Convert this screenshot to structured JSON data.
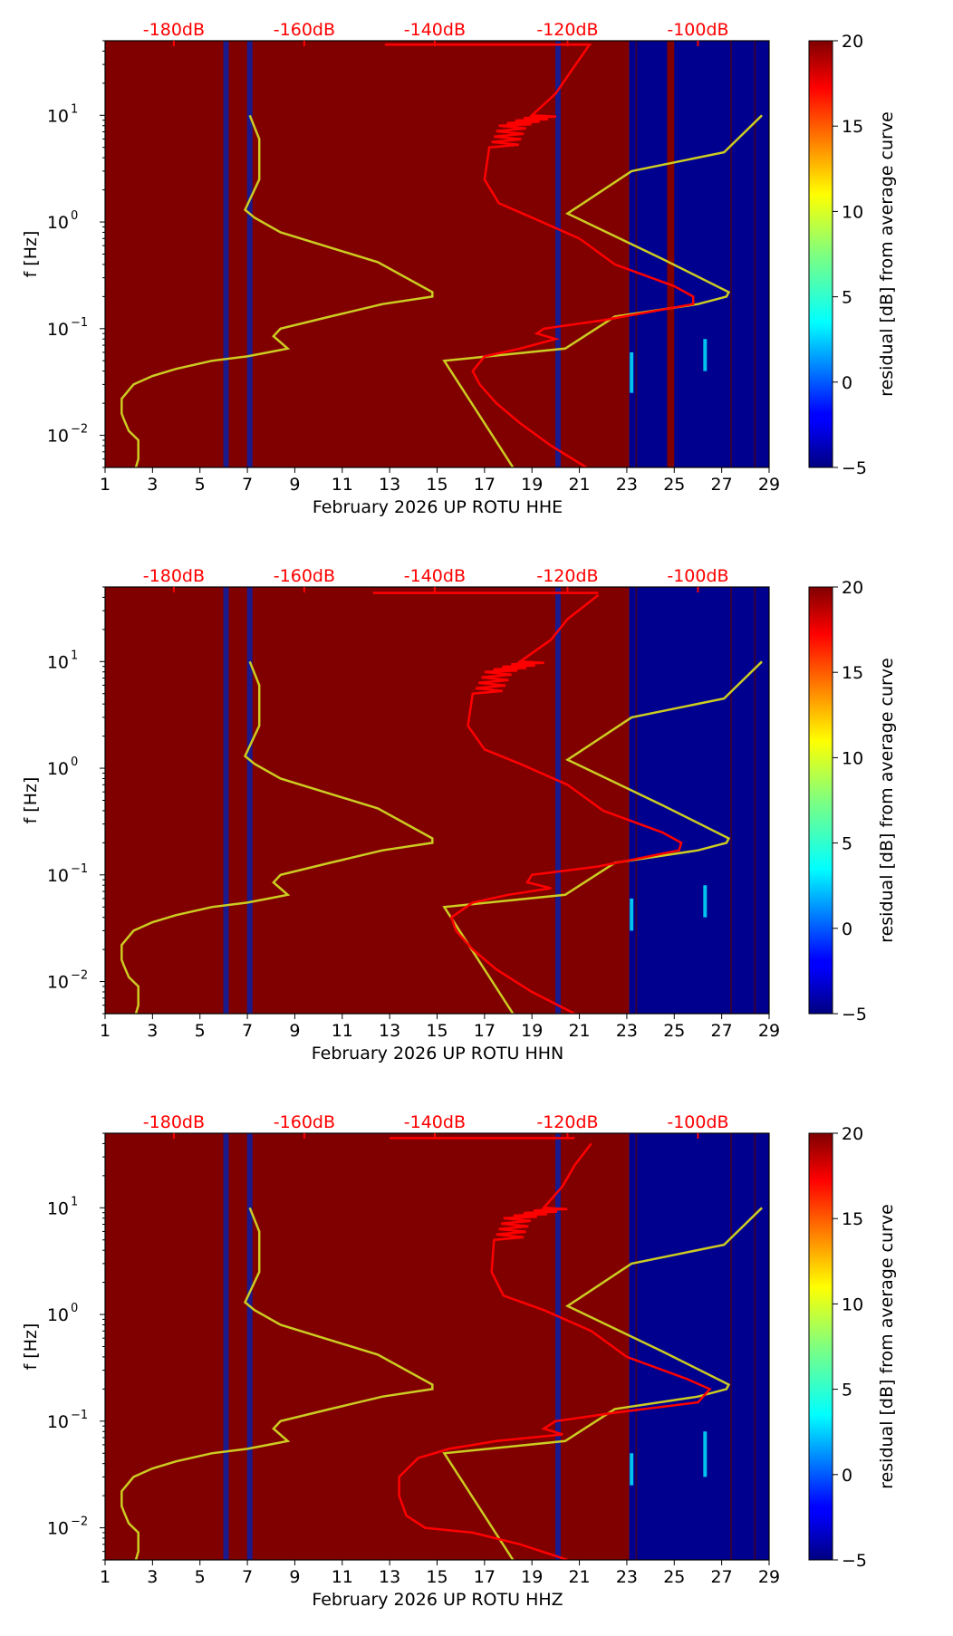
{
  "colors": {
    "background_warm": "#800000",
    "background_cold": "#00008f",
    "stripe": "#1a1a8c",
    "red_curve": "#ff0000",
    "yellow_curve": "#cccc22",
    "top_label": "#ff0000"
  },
  "chart_data": [
    {
      "type": "heatmap",
      "title": "",
      "xlabel": "February 2026 UP ROTU  HHE",
      "ylabel": "f [Hz]",
      "x_ticks": [
        "1",
        "3",
        "5",
        "7",
        "9",
        "11",
        "13",
        "15",
        "17",
        "19",
        "21",
        "23",
        "25",
        "27",
        "29"
      ],
      "xlim": [
        1,
        29
      ],
      "ylim": [
        0.005,
        50
      ],
      "y_ticks": [
        {
          "value": 10,
          "base": "10",
          "exp": "1"
        },
        {
          "value": 1,
          "base": "10",
          "exp": "0"
        },
        {
          "value": 0.1,
          "base": "10",
          "exp": "−1"
        },
        {
          "value": 0.01,
          "base": "10",
          "exp": "−2"
        }
      ],
      "top_axis_labels": [
        "-180dB",
        "-160dB",
        "-140dB",
        "-120dB",
        "-100dB"
      ],
      "top_axis_positions": [
        3.9,
        9.4,
        14.9,
        20.5,
        26.0
      ],
      "colorbar": {
        "label": "residual [dB] from average curve",
        "ticks": [
          "20",
          "15",
          "10",
          "5",
          "0",
          "−5"
        ],
        "range": [
          -5,
          20
        ]
      },
      "background_regions": [
        {
          "from": 1,
          "to": 23.1,
          "value": 20
        },
        {
          "from": 23.1,
          "to": 29,
          "value": -5
        },
        {
          "from": 24.7,
          "to": 25.0,
          "value": 20
        }
      ],
      "gap_stripes": [
        6.1,
        7.1,
        20.1,
        23.4,
        27.4,
        28.4
      ],
      "yellow_curve": [
        [
          2.3,
          0.005
        ],
        [
          2.4,
          0.006
        ],
        [
          2.4,
          0.009
        ],
        [
          2.0,
          0.011
        ],
        [
          1.8,
          0.014
        ],
        [
          1.7,
          0.016
        ],
        [
          1.7,
          0.022
        ],
        [
          2.2,
          0.03
        ],
        [
          3.0,
          0.036
        ],
        [
          4.0,
          0.042
        ],
        [
          5.5,
          0.05
        ],
        [
          7.0,
          0.055
        ],
        [
          7.9,
          0.06
        ],
        [
          8.7,
          0.065
        ],
        [
          8.1,
          0.085
        ],
        [
          8.4,
          0.1
        ],
        [
          10.5,
          0.13
        ],
        [
          12.7,
          0.17
        ],
        [
          14.8,
          0.2
        ],
        [
          14.8,
          0.22
        ],
        [
          12.5,
          0.42
        ],
        [
          8.4,
          0.8
        ],
        [
          7.3,
          1.1
        ],
        [
          6.9,
          1.3
        ],
        [
          7.5,
          2.5
        ],
        [
          7.5,
          6
        ],
        [
          7.1,
          10
        ]
      ],
      "yellow_curve_2": [
        [
          18.2,
          0.005
        ],
        [
          15.3,
          0.05
        ],
        [
          20.4,
          0.065
        ],
        [
          22.5,
          0.13
        ],
        [
          26.0,
          0.17
        ],
        [
          27.2,
          0.2
        ],
        [
          27.3,
          0.22
        ],
        [
          24.5,
          0.45
        ],
        [
          20.5,
          1.2
        ],
        [
          23.2,
          3.0
        ],
        [
          27.1,
          4.5
        ],
        [
          28.7,
          10
        ]
      ],
      "red_curve": [
        [
          21.3,
          0.005
        ],
        [
          19.8,
          0.008
        ],
        [
          18.5,
          0.013
        ],
        [
          17.5,
          0.02
        ],
        [
          16.8,
          0.03
        ],
        [
          16.5,
          0.04
        ],
        [
          17.0,
          0.055
        ],
        [
          18.5,
          0.065
        ],
        [
          20.0,
          0.08
        ],
        [
          19.2,
          0.09
        ],
        [
          19.5,
          0.1
        ],
        [
          22.0,
          0.12
        ],
        [
          25.8,
          0.17
        ],
        [
          25.8,
          0.2
        ],
        [
          25.0,
          0.25
        ],
        [
          22.5,
          0.4
        ],
        [
          21.0,
          0.7
        ],
        [
          19.0,
          1.1
        ],
        [
          17.6,
          1.5
        ],
        [
          17.0,
          2.5
        ],
        [
          17.2,
          5
        ],
        [
          17.6,
          8
        ],
        [
          19.0,
          10
        ],
        [
          20.0,
          16
        ],
        [
          20.6,
          25
        ],
        [
          21.4,
          45
        ]
      ],
      "red_noise_range": [
        3,
        9
      ],
      "red_top": {
        "from": 12.8,
        "to": 21.5,
        "f": 46
      },
      "streaks": [
        [
          23.2,
          0.025,
          0.06
        ],
        [
          26.3,
          0.04,
          0.08
        ]
      ]
    },
    {
      "type": "heatmap",
      "title": "",
      "xlabel": "February 2026 UP ROTU  HHN",
      "ylabel": "f [Hz]",
      "x_ticks": [
        "1",
        "3",
        "5",
        "7",
        "9",
        "11",
        "13",
        "15",
        "17",
        "19",
        "21",
        "23",
        "25",
        "27",
        "29"
      ],
      "xlim": [
        1,
        29
      ],
      "ylim": [
        0.005,
        50
      ],
      "y_ticks": [
        {
          "value": 10,
          "base": "10",
          "exp": "1"
        },
        {
          "value": 1,
          "base": "10",
          "exp": "0"
        },
        {
          "value": 0.1,
          "base": "10",
          "exp": "−1"
        },
        {
          "value": 0.01,
          "base": "10",
          "exp": "−2"
        }
      ],
      "top_axis_labels": [
        "-180dB",
        "-160dB",
        "-140dB",
        "-120dB",
        "-100dB"
      ],
      "top_axis_positions": [
        3.9,
        9.4,
        14.9,
        20.5,
        26.0
      ],
      "colorbar": {
        "label": "residual [dB] from average curve",
        "ticks": [
          "20",
          "15",
          "10",
          "5",
          "0",
          "−5"
        ],
        "range": [
          -5,
          20
        ]
      },
      "background_regions": [
        {
          "from": 1,
          "to": 23.1,
          "value": 20
        },
        {
          "from": 23.1,
          "to": 29,
          "value": -5
        }
      ],
      "gap_stripes": [
        6.1,
        7.1,
        20.1,
        23.4,
        27.4,
        28.4
      ],
      "yellow_curve": [
        [
          2.3,
          0.005
        ],
        [
          2.4,
          0.006
        ],
        [
          2.4,
          0.009
        ],
        [
          2.0,
          0.011
        ],
        [
          1.8,
          0.014
        ],
        [
          1.7,
          0.016
        ],
        [
          1.7,
          0.022
        ],
        [
          2.2,
          0.03
        ],
        [
          3.0,
          0.036
        ],
        [
          4.0,
          0.042
        ],
        [
          5.5,
          0.05
        ],
        [
          7.0,
          0.055
        ],
        [
          7.9,
          0.06
        ],
        [
          8.7,
          0.065
        ],
        [
          8.1,
          0.085
        ],
        [
          8.4,
          0.1
        ],
        [
          10.5,
          0.13
        ],
        [
          12.7,
          0.17
        ],
        [
          14.8,
          0.2
        ],
        [
          14.8,
          0.22
        ],
        [
          12.5,
          0.42
        ],
        [
          8.4,
          0.8
        ],
        [
          7.3,
          1.1
        ],
        [
          6.9,
          1.3
        ],
        [
          7.5,
          2.5
        ],
        [
          7.5,
          6
        ],
        [
          7.1,
          10
        ]
      ],
      "yellow_curve_2": [
        [
          18.2,
          0.005
        ],
        [
          15.3,
          0.05
        ],
        [
          20.4,
          0.065
        ],
        [
          22.5,
          0.13
        ],
        [
          26.0,
          0.17
        ],
        [
          27.2,
          0.2
        ],
        [
          27.3,
          0.22
        ],
        [
          24.5,
          0.45
        ],
        [
          20.5,
          1.2
        ],
        [
          23.2,
          3.0
        ],
        [
          27.1,
          4.5
        ],
        [
          28.7,
          10
        ]
      ],
      "red_curve": [
        [
          20.8,
          0.005
        ],
        [
          19.0,
          0.008
        ],
        [
          17.5,
          0.013
        ],
        [
          16.5,
          0.02
        ],
        [
          15.8,
          0.03
        ],
        [
          15.6,
          0.04
        ],
        [
          16.5,
          0.055
        ],
        [
          18.0,
          0.065
        ],
        [
          19.8,
          0.075
        ],
        [
          18.8,
          0.085
        ],
        [
          19.0,
          0.1
        ],
        [
          21.8,
          0.12
        ],
        [
          25.2,
          0.17
        ],
        [
          25.3,
          0.2
        ],
        [
          24.5,
          0.25
        ],
        [
          22.0,
          0.4
        ],
        [
          20.5,
          0.7
        ],
        [
          18.5,
          1.1
        ],
        [
          17.0,
          1.5
        ],
        [
          16.3,
          2.5
        ],
        [
          16.5,
          5
        ],
        [
          17.0,
          8
        ],
        [
          18.5,
          10
        ],
        [
          19.8,
          16
        ],
        [
          20.5,
          25
        ],
        [
          21.8,
          42
        ]
      ],
      "red_noise_range": [
        3,
        10
      ],
      "red_top": {
        "from": 12.3,
        "to": 21.8,
        "f": 44
      },
      "streaks": [
        [
          23.2,
          0.03,
          0.06
        ],
        [
          26.3,
          0.04,
          0.08
        ]
      ]
    },
    {
      "type": "heatmap",
      "title": "",
      "xlabel": "February 2026 UP ROTU  HHZ",
      "ylabel": "f [Hz]",
      "x_ticks": [
        "1",
        "3",
        "5",
        "7",
        "9",
        "11",
        "13",
        "15",
        "17",
        "19",
        "21",
        "23",
        "25",
        "27",
        "29"
      ],
      "xlim": [
        1,
        29
      ],
      "ylim": [
        0.005,
        50
      ],
      "y_ticks": [
        {
          "value": 10,
          "base": "10",
          "exp": "1"
        },
        {
          "value": 1,
          "base": "10",
          "exp": "0"
        },
        {
          "value": 0.1,
          "base": "10",
          "exp": "−1"
        },
        {
          "value": 0.01,
          "base": "10",
          "exp": "−2"
        }
      ],
      "top_axis_labels": [
        "-180dB",
        "-160dB",
        "-140dB",
        "-120dB",
        "-100dB"
      ],
      "top_axis_positions": [
        3.9,
        9.4,
        14.9,
        20.5,
        26.0
      ],
      "colorbar": {
        "label": "residual [dB] from average curve",
        "ticks": [
          "20",
          "15",
          "10",
          "5",
          "0",
          "−5"
        ],
        "range": [
          -5,
          20
        ]
      },
      "background_regions": [
        {
          "from": 1,
          "to": 23.1,
          "value": 20
        },
        {
          "from": 23.1,
          "to": 29,
          "value": -5
        }
      ],
      "gap_stripes": [
        6.1,
        7.1,
        20.1,
        23.4,
        27.4,
        28.4
      ],
      "yellow_curve": [
        [
          2.3,
          0.005
        ],
        [
          2.4,
          0.006
        ],
        [
          2.4,
          0.009
        ],
        [
          2.0,
          0.011
        ],
        [
          1.8,
          0.014
        ],
        [
          1.7,
          0.016
        ],
        [
          1.7,
          0.022
        ],
        [
          2.2,
          0.03
        ],
        [
          3.0,
          0.036
        ],
        [
          4.0,
          0.042
        ],
        [
          5.5,
          0.05
        ],
        [
          7.0,
          0.055
        ],
        [
          7.9,
          0.06
        ],
        [
          8.7,
          0.065
        ],
        [
          8.1,
          0.085
        ],
        [
          8.4,
          0.1
        ],
        [
          10.5,
          0.13
        ],
        [
          12.7,
          0.17
        ],
        [
          14.8,
          0.2
        ],
        [
          14.8,
          0.22
        ],
        [
          12.5,
          0.42
        ],
        [
          8.4,
          0.8
        ],
        [
          7.3,
          1.1
        ],
        [
          6.9,
          1.3
        ],
        [
          7.5,
          2.5
        ],
        [
          7.5,
          6
        ],
        [
          7.1,
          10
        ]
      ],
      "yellow_curve_2": [
        [
          18.2,
          0.005
        ],
        [
          15.3,
          0.05
        ],
        [
          20.4,
          0.065
        ],
        [
          22.5,
          0.13
        ],
        [
          26.0,
          0.17
        ],
        [
          27.2,
          0.2
        ],
        [
          27.3,
          0.22
        ],
        [
          24.5,
          0.45
        ],
        [
          20.5,
          1.2
        ],
        [
          23.2,
          3.0
        ],
        [
          27.1,
          4.5
        ],
        [
          28.7,
          10
        ]
      ],
      "red_curve": [
        [
          20.5,
          0.005
        ],
        [
          18.5,
          0.007
        ],
        [
          16.5,
          0.009
        ],
        [
          14.5,
          0.01
        ],
        [
          13.7,
          0.013
        ],
        [
          13.4,
          0.02
        ],
        [
          13.4,
          0.03
        ],
        [
          14.2,
          0.045
        ],
        [
          15.5,
          0.055
        ],
        [
          17.5,
          0.065
        ],
        [
          20.3,
          0.075
        ],
        [
          19.5,
          0.085
        ],
        [
          20.0,
          0.1
        ],
        [
          22.5,
          0.12
        ],
        [
          26.0,
          0.15
        ],
        [
          26.5,
          0.2
        ],
        [
          25.5,
          0.25
        ],
        [
          23.0,
          0.4
        ],
        [
          21.5,
          0.7
        ],
        [
          19.5,
          1.1
        ],
        [
          17.8,
          1.5
        ],
        [
          17.3,
          2.5
        ],
        [
          17.4,
          5
        ],
        [
          17.8,
          8
        ],
        [
          19.5,
          10
        ],
        [
          20.3,
          16
        ],
        [
          20.8,
          25
        ],
        [
          21.5,
          40
        ]
      ],
      "red_noise_range": [
        3,
        9
      ],
      "red_top": {
        "from": 13.0,
        "to": 20.8,
        "f": 45
      },
      "streaks": [
        [
          23.2,
          0.025,
          0.05
        ],
        [
          26.3,
          0.03,
          0.08
        ]
      ]
    }
  ]
}
